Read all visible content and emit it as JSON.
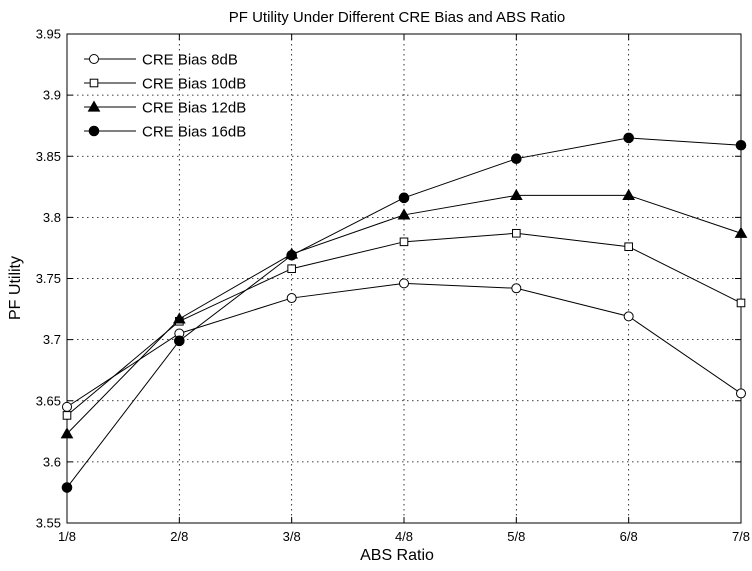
{
  "chart_data": {
    "type": "line",
    "title": "PF Utility Under Different CRE Bias and ABS Ratio",
    "xlabel": "ABS Ratio",
    "ylabel": "PF Utility",
    "categories": [
      "1/8",
      "2/8",
      "3/8",
      "4/8",
      "5/8",
      "6/8",
      "7/8"
    ],
    "ylim": [
      3.55,
      3.95
    ],
    "yticks": [
      "3.55",
      "3.6",
      "3.65",
      "3.7",
      "3.75",
      "3.8",
      "3.85",
      "3.9",
      "3.95"
    ],
    "grid": true,
    "legend_position": "top-left",
    "series": [
      {
        "name": "CRE Bias 8dB",
        "marker": "open-circle",
        "values": [
          3.645,
          3.705,
          3.734,
          3.746,
          3.742,
          3.719,
          3.656
        ]
      },
      {
        "name": "CRE Bias 10dB",
        "marker": "open-square",
        "values": [
          3.638,
          3.715,
          3.758,
          3.78,
          3.787,
          3.776,
          3.73
        ]
      },
      {
        "name": "CRE Bias 12dB",
        "marker": "filled-triangle",
        "values": [
          3.623,
          3.717,
          3.77,
          3.802,
          3.818,
          3.818,
          3.787
        ]
      },
      {
        "name": "CRE Bias 16dB",
        "marker": "filled-circle",
        "values": [
          3.579,
          3.699,
          3.769,
          3.816,
          3.848,
          3.865,
          3.859
        ]
      }
    ]
  }
}
